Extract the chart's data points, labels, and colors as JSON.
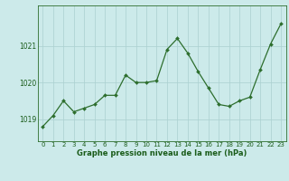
{
  "x": [
    0,
    1,
    2,
    3,
    4,
    5,
    6,
    7,
    8,
    9,
    10,
    11,
    12,
    13,
    14,
    15,
    16,
    17,
    18,
    19,
    20,
    21,
    22,
    23
  ],
  "y": [
    1018.8,
    1019.1,
    1019.5,
    1019.2,
    1019.3,
    1019.4,
    1019.65,
    1019.65,
    1020.2,
    1020.0,
    1020.0,
    1020.05,
    1020.9,
    1021.2,
    1020.8,
    1020.3,
    1019.85,
    1019.4,
    1019.35,
    1019.5,
    1019.6,
    1020.35,
    1021.05,
    1021.6
  ],
  "line_color": "#2d6e2d",
  "marker": "D",
  "marker_size": 2.0,
  "line_width": 0.9,
  "bg_color": "#cceaea",
  "plot_bg_color": "#cceaea",
  "grid_color": "#aad0d0",
  "xlabel": "Graphe pression niveau de la mer (hPa)",
  "xlabel_fontsize": 6.0,
  "xlabel_color": "#1a5c1a",
  "tick_color": "#1a5c1a",
  "tick_fontsize": 5.0,
  "ytick_fontsize": 5.5,
  "yticks": [
    1019,
    1020,
    1021
  ],
  "ylim": [
    1018.4,
    1022.1
  ],
  "xlim": [
    -0.5,
    23.5
  ],
  "xticks": [
    0,
    1,
    2,
    3,
    4,
    5,
    6,
    7,
    8,
    9,
    10,
    11,
    12,
    13,
    14,
    15,
    16,
    17,
    18,
    19,
    20,
    21,
    22,
    23
  ],
  "spine_color": "#2d6e2d"
}
